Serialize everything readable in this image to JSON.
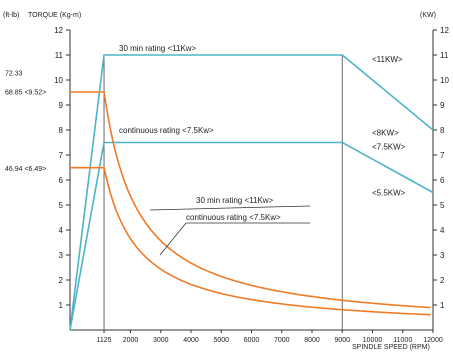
{
  "chart_data": {
    "type": "line",
    "y_left_unit": "(ft-lb)",
    "y_left_label": "TORQUE (Kg-m)",
    "y_right_label": "(KW)",
    "xlabel": "SPINDLE SPEED (RPM)",
    "xlim": [
      0,
      12000
    ],
    "ylim": [
      0,
      12
    ],
    "x_ticks": [
      "1125",
      "2000",
      "3000",
      "4000",
      "5000",
      "6000",
      "7000",
      "8000",
      "9000",
      "10000",
      "11000",
      "12000"
    ],
    "y_ticks_left": [
      "1",
      "2",
      "3",
      "4",
      "5",
      "6",
      "7",
      "8",
      "9",
      "10",
      "11",
      "12"
    ],
    "y_ticks_right": [
      "1",
      "2",
      "3",
      "4",
      "5",
      "6",
      "7",
      "8",
      "9",
      "10",
      "11",
      "12"
    ],
    "left_annotations": [
      {
        "text": "72.33",
        "y": 10.3
      },
      {
        "text": "68.85 <9.52>",
        "y": 9.55
      },
      {
        "text": "46.94 <6.49>",
        "y": 6.49
      }
    ],
    "right_annotations": [
      {
        "text": "<11KW>",
        "y": 10.85
      },
      {
        "text": "<8KW>",
        "y": 7.9
      },
      {
        "text": "<7.5KW>",
        "y": 7.35
      },
      {
        "text": "<5.5KW>",
        "y": 5.5
      }
    ],
    "power_series": [
      {
        "name": "30 min rating <11Kw>",
        "points": [
          [
            0,
            0
          ],
          [
            1125,
            11
          ],
          [
            9000,
            11
          ],
          [
            12000,
            8
          ]
        ]
      },
      {
        "name": "continuous rating <7.5Kw>",
        "points": [
          [
            0,
            0
          ],
          [
            1125,
            7.5
          ],
          [
            9000,
            7.5
          ],
          [
            12000,
            5.5
          ]
        ]
      }
    ],
    "torque_series": [
      {
        "name": "30 min rating <11Kw>",
        "flat_value": 9.52,
        "base_rpm": 1125,
        "end_rpm": 12000
      },
      {
        "name": "continuous rating <7.5Kw>",
        "flat_value": 6.49,
        "base_rpm": 1125,
        "end_rpm": 12000
      }
    ],
    "colors": {
      "power": "#4fb3c8",
      "torque": "#f07a26",
      "axis": "#333333",
      "marker": "#666666"
    }
  }
}
